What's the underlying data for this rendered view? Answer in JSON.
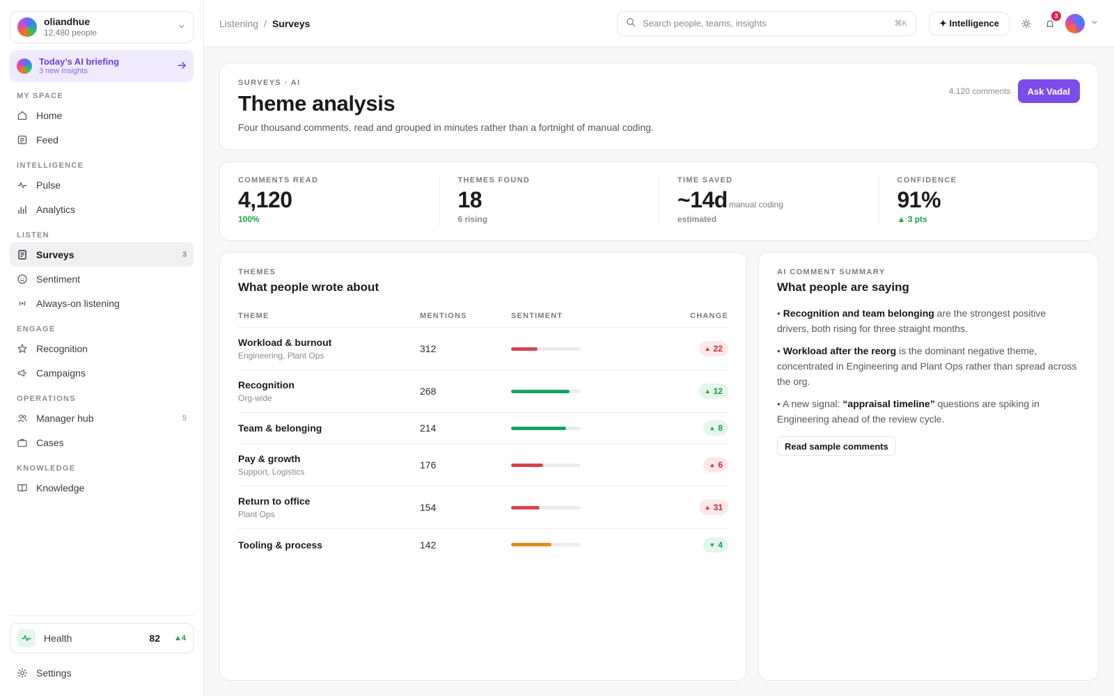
{
  "org": {
    "name": "oliandhue",
    "people": "12,480 people"
  },
  "briefing": {
    "title": "Today’s AI briefing",
    "sub": "3 new insights"
  },
  "nav": {
    "sections": {
      "my_space": "MY SPACE",
      "intelligence": "INTELLIGENCE",
      "listen": "LISTEN",
      "engage": "ENGAGE",
      "operations": "OPERATIONS",
      "knowledge": "KNOWLEDGE"
    },
    "items": {
      "home": "Home",
      "feed": "Feed",
      "pulse": "Pulse",
      "analytics": "Analytics",
      "surveys": "Surveys",
      "surveys_count": "3",
      "sentiment": "Sentiment",
      "always_on": "Always-on listening",
      "recognition": "Recognition",
      "campaigns": "Campaigns",
      "manager_hub": "Manager hub",
      "manager_hub_count": "5",
      "cases": "Cases",
      "knowledge": "Knowledge"
    }
  },
  "health": {
    "label": "Health",
    "value": "82",
    "delta": "4"
  },
  "settings": {
    "label": "Settings"
  },
  "topbar": {
    "breadcrumb": {
      "parent": "Listening",
      "sep": "/",
      "current": "Surveys"
    },
    "search_placeholder": "Search people, teams, insights",
    "search_kbd": "⌘K",
    "intelligence_label": "✦ Intelligence",
    "notifications": "3"
  },
  "hero": {
    "eyebrow": "SURVEYS · AI",
    "title": "Theme analysis",
    "subtitle": "Four thousand comments, read and grouped in minutes rather than a fortnight of manual coding.",
    "comments": "4,120 comments",
    "ask_label": "Ask Vadal"
  },
  "stats": [
    {
      "label": "COMMENTS READ",
      "value": "4,120",
      "unit": "",
      "foot": "100%",
      "foot_style": "green"
    },
    {
      "label": "THEMES FOUND",
      "value": "18",
      "unit": "",
      "foot": "6 rising",
      "foot_style": "muted"
    },
    {
      "label": "TIME SAVED",
      "value": "~14d",
      "unit": "manual coding",
      "foot": "estimated",
      "foot_style": "muted"
    },
    {
      "label": "CONFIDENCE",
      "value": "91%",
      "unit": "",
      "foot": "▲ 3 pts",
      "foot_style": "green"
    }
  ],
  "themes": {
    "eyebrow": "THEMES",
    "title": "What people wrote about",
    "headers": {
      "theme": "THEME",
      "mentions": "MENTIONS",
      "sentiment": "SENTIMENT",
      "change": "CHANGE"
    },
    "rows": [
      {
        "name": "Workload & burnout",
        "sub": "Engineering, Plant Ops",
        "mentions": "312",
        "sentiment": 0.38,
        "sentiment_color": "#d9434c",
        "change": "22",
        "direction": "up",
        "change_color": "red"
      },
      {
        "name": "Recognition",
        "sub": "Org-wide",
        "mentions": "268",
        "sentiment": 0.84,
        "sentiment_color": "#16a365",
        "change": "12",
        "direction": "up",
        "change_color": "green"
      },
      {
        "name": "Team & belonging",
        "sub": "",
        "mentions": "214",
        "sentiment": 0.79,
        "sentiment_color": "#16a365",
        "change": "8",
        "direction": "up",
        "change_color": "green"
      },
      {
        "name": "Pay & growth",
        "sub": "Support, Logistics",
        "mentions": "176",
        "sentiment": 0.46,
        "sentiment_color": "#d9434c",
        "change": "6",
        "direction": "up",
        "change_color": "red"
      },
      {
        "name": "Return to office",
        "sub": "Plant Ops",
        "mentions": "154",
        "sentiment": 0.41,
        "sentiment_color": "#d9434c",
        "change": "31",
        "direction": "up",
        "change_color": "red"
      },
      {
        "name": "Tooling & process",
        "sub": "",
        "mentions": "142",
        "sentiment": 0.58,
        "sentiment_color": "#e28a1b",
        "change": "4",
        "direction": "down",
        "change_color": "green"
      }
    ]
  },
  "summary": {
    "eyebrow": "AI COMMENT SUMMARY",
    "title": "What people are saying",
    "points": [
      {
        "lead": "• ",
        "bold": "Recognition and team belonging",
        "pre": "",
        "rest": " are the strongest positive drivers, both rising for three straight months."
      },
      {
        "lead": "• ",
        "bold": "Workload after the reorg",
        "pre": "",
        "rest": " is the dominant negative theme, concentrated in Engineering and Plant Ops rather than spread across the org."
      },
      {
        "lead": "• ",
        "bold": "“appraisal timeline”",
        "pre": "A new signal: ",
        "rest": " questions are spiking in Engineering ahead of the review cycle."
      }
    ],
    "read_label": "Read sample comments"
  }
}
